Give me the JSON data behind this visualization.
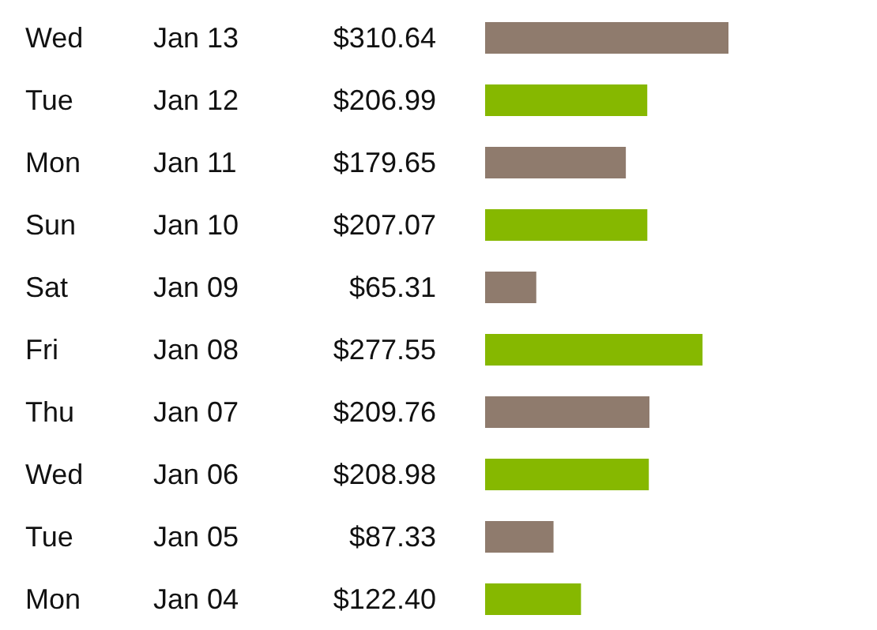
{
  "chart_data": {
    "type": "bar",
    "orientation": "horizontal",
    "categories": [
      "Wed Jan 13",
      "Tue Jan 12",
      "Mon Jan 11",
      "Sun Jan 10",
      "Sat Jan 09",
      "Fri Jan 08",
      "Thu Jan 07",
      "Wed Jan 06",
      "Tue Jan 05",
      "Mon Jan 04"
    ],
    "values": [
      310.64,
      206.99,
      179.65,
      207.07,
      65.31,
      277.55,
      209.76,
      208.98,
      87.33,
      122.4
    ],
    "value_labels": [
      "$310.64",
      "$206.99",
      "$179.65",
      "$207.07",
      "$65.31",
      "$277.55",
      "$209.76",
      "$208.98",
      "$87.33",
      "$122.40"
    ],
    "colors": [
      "#8f7b6d",
      "#86b800",
      "#8f7b6d",
      "#86b800",
      "#8f7b6d",
      "#86b800",
      "#8f7b6d",
      "#86b800",
      "#8f7b6d",
      "#86b800"
    ],
    "tick_labels": "y"
  }
}
